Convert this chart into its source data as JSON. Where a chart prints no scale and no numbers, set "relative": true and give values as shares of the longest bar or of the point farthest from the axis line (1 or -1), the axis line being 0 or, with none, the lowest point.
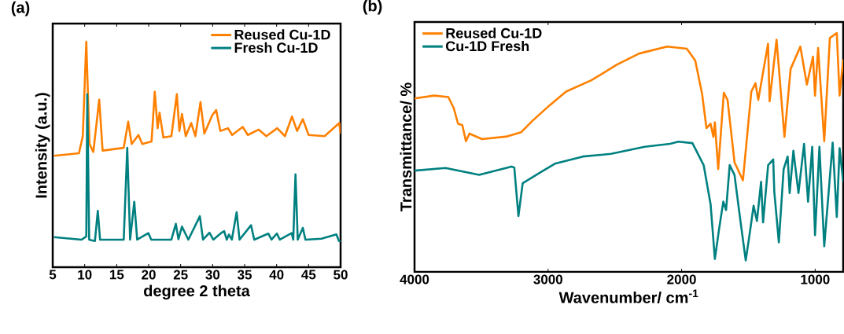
{
  "chart_data": [
    {
      "type": "line",
      "title": "(a)",
      "xlabel": "degree 2 theta",
      "ylabel": "Intensity (a.u.)",
      "relative": true,
      "legend": "top right",
      "xlim": [
        5,
        50
      ],
      "xticks": [
        5,
        10,
        15,
        20,
        25,
        30,
        35,
        40,
        45,
        50
      ],
      "series": [
        {
          "name": "Reused Cu-1D",
          "color": "#ff8000",
          "x": [
            5.2,
            9.1,
            9.7,
            10.25,
            10.75,
            11.35,
            12.27,
            12.8,
            16.1,
            16.8,
            17.35,
            18.4,
            19.0,
            20.45,
            20.95,
            21.4,
            21.7,
            22.3,
            23.55,
            24.4,
            24.8,
            25.2,
            25.8,
            26.65,
            27.3,
            28.1,
            28.7,
            29.95,
            30.55,
            31.2,
            32.4,
            33.05,
            34.7,
            35.5,
            37.2,
            38.4,
            40.1,
            41.3,
            42.4,
            43.2,
            44.1,
            45.0,
            47.5,
            49.8,
            50
          ],
          "values": [
            0.494,
            0.505,
            0.581,
            1.0,
            0.546,
            0.511,
            0.743,
            0.517,
            0.529,
            0.645,
            0.546,
            0.586,
            0.546,
            0.557,
            0.778,
            0.616,
            0.685,
            0.575,
            0.581,
            0.767,
            0.604,
            0.679,
            0.581,
            0.639,
            0.581,
            0.732,
            0.592,
            0.674,
            0.697,
            0.604,
            0.616,
            0.586,
            0.622,
            0.586,
            0.61,
            0.581,
            0.616,
            0.581,
            0.668,
            0.604,
            0.656,
            0.586,
            0.581,
            0.639,
            0.592
          ]
        },
        {
          "name": "Fresh Cu-1D",
          "color": "#008080",
          "x": [
            5.2,
            9.5,
            10.25,
            10.4,
            10.7,
            11.6,
            12.05,
            12.4,
            16.1,
            16.65,
            17.1,
            17.75,
            18.2,
            19.95,
            20.4,
            23.55,
            24.25,
            24.65,
            25.2,
            25.7,
            26.2,
            28.0,
            28.5,
            29.5,
            30.1,
            31.3,
            31.8,
            32.2,
            32.55,
            33.0,
            33.75,
            34.2,
            36.0,
            36.5,
            38.7,
            39.2,
            40.05,
            40.5,
            42.35,
            42.6,
            42.95,
            43.3,
            44.1,
            44.5,
            47.0,
            49.35,
            49.75,
            50
          ],
          "values": [
            0.133,
            0.122,
            0.136,
            0.767,
            0.122,
            0.116,
            0.25,
            0.122,
            0.122,
            0.529,
            0.122,
            0.29,
            0.122,
            0.151,
            0.122,
            0.122,
            0.192,
            0.124,
            0.18,
            0.151,
            0.122,
            0.226,
            0.122,
            0.153,
            0.122,
            0.151,
            0.16,
            0.122,
            0.145,
            0.122,
            0.244,
            0.122,
            0.186,
            0.122,
            0.149,
            0.122,
            0.149,
            0.122,
            0.151,
            0.122,
            0.412,
            0.122,
            0.174,
            0.122,
            0.126,
            0.145,
            0.116,
            0.116
          ]
        }
      ]
    },
    {
      "type": "line",
      "title": "(b)",
      "xlabel": "Wavenumber/ cm$^{-1}$",
      "ylabel": "Transmittance/ %",
      "relative": true,
      "legend": "top left",
      "xlim": [
        4000,
        790
      ],
      "xticks": [
        4000,
        3000,
        2000,
        1000
      ],
      "series": [
        {
          "name": "Reused Cu-1D",
          "color": "#ff8000",
          "x": [
            4000,
            3853,
            3747,
            3706,
            3674,
            3642,
            3615,
            3589,
            3495,
            3306,
            3201,
            3118,
            2991,
            2865,
            2676,
            2486,
            2318,
            2108,
            1961,
            1898,
            1846,
            1814,
            1783,
            1762,
            1751,
            1726,
            1684,
            1656,
            1604,
            1541,
            1478,
            1447,
            1426,
            1353,
            1341,
            1289,
            1230,
            1184,
            1111,
            1062,
            1016,
            1001,
            978,
            932,
            890,
            838,
            817,
            790
          ],
          "values": [
            0.726,
            0.738,
            0.732,
            0.685,
            0.62,
            0.614,
            0.547,
            0.579,
            0.556,
            0.567,
            0.585,
            0.632,
            0.696,
            0.755,
            0.802,
            0.867,
            0.914,
            0.943,
            0.934,
            0.885,
            0.743,
            0.602,
            0.62,
            0.565,
            0.626,
            0.43,
            0.75,
            0.72,
            0.459,
            0.383,
            0.755,
            0.79,
            0.72,
            0.955,
            0.714,
            0.972,
            0.565,
            0.849,
            0.943,
            0.784,
            0.901,
            0.738,
            0.937,
            0.547,
            0.979,
            1.0,
            0.738,
            0.89
          ]
        },
        {
          "name": "Cu-1D Fresh",
          "color": "#008080",
          "x": [
            4000,
            3768,
            3516,
            3274,
            3253,
            3222,
            3190,
            3053,
            2949,
            2739,
            2529,
            2276,
            2087,
            2024,
            1919,
            1835,
            1783,
            1751,
            1720,
            1688,
            1667,
            1640,
            1604,
            1562,
            1520,
            1489,
            1461,
            1436,
            1405,
            1390,
            1352,
            1314,
            1306,
            1272,
            1236,
            1206,
            1191,
            1163,
            1125,
            1083,
            1053,
            1022,
            1001,
            968,
            932,
            869,
            838,
            817,
            790
          ],
          "values": [
            0.424,
            0.435,
            0.406,
            0.441,
            0.437,
            0.234,
            0.371,
            0.418,
            0.453,
            0.483,
            0.494,
            0.524,
            0.536,
            0.545,
            0.539,
            0.447,
            0.283,
            0.054,
            0.177,
            0.294,
            0.259,
            0.447,
            0.406,
            0.224,
            0.048,
            0.165,
            0.277,
            0.213,
            0.377,
            0.207,
            0.447,
            0.471,
            0.336,
            0.124,
            0.43,
            0.483,
            0.33,
            0.507,
            0.33,
            0.536,
            0.294,
            0.524,
            0.154,
            0.524,
            0.107,
            0.541,
            0.23,
            0.518,
            0.377
          ]
        }
      ]
    }
  ]
}
